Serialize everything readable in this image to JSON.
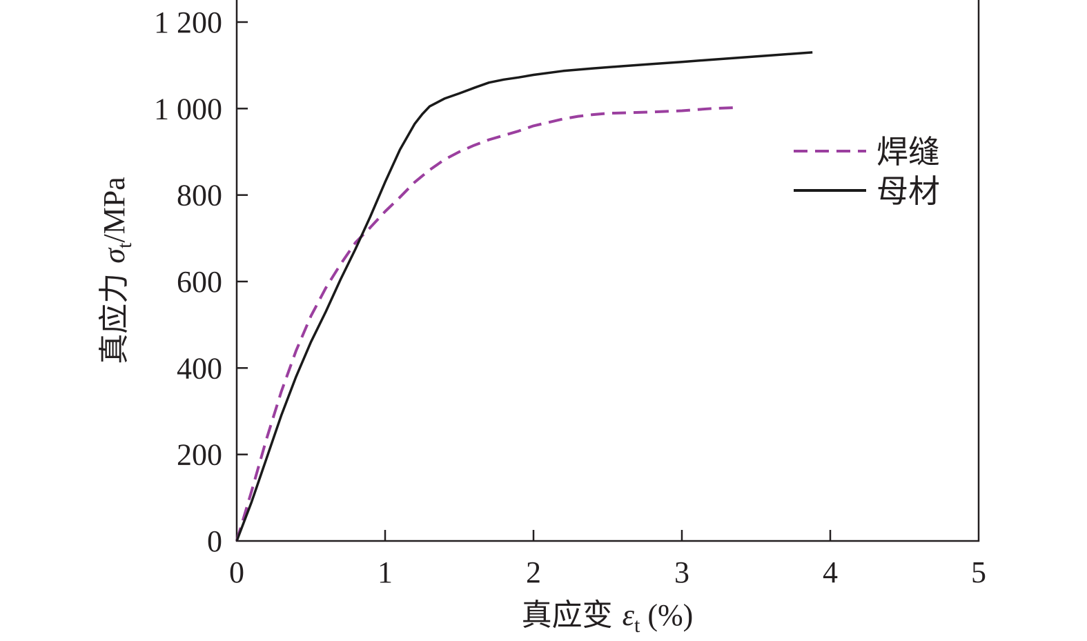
{
  "chart_data": {
    "type": "line",
    "xlabel": {
      "main": "真应变 ",
      "symbol": "ε",
      "subscript": "t",
      "unit": " (%)"
    },
    "ylabel": {
      "main": "真应力 ",
      "symbol": "σ",
      "subscript": "t",
      "unit": "/MPa"
    },
    "xlim": [
      0,
      5
    ],
    "ylim": [
      0,
      1200
    ],
    "x_ticks": [
      0,
      1,
      2,
      3,
      4,
      5
    ],
    "x_tick_labels": [
      "0",
      "1",
      "2",
      "3",
      "4",
      "5"
    ],
    "y_ticks": [
      0,
      200,
      400,
      600,
      800,
      1000,
      1200
    ],
    "y_tick_labels": [
      "0",
      "200",
      "400",
      "600",
      "800",
      "1 000",
      "1 200"
    ],
    "grid": false,
    "legend_position": "right-upper",
    "series": [
      {
        "name": "焊缝",
        "style": "dashed",
        "color": "#9b3f9f",
        "x": [
          0,
          0.1,
          0.2,
          0.3,
          0.4,
          0.5,
          0.6,
          0.7,
          0.8,
          0.9,
          1.0,
          1.1,
          1.2,
          1.3,
          1.4,
          1.5,
          1.6,
          1.7,
          1.8,
          1.9,
          2.0,
          2.1,
          2.2,
          2.3,
          2.4,
          2.5,
          2.6,
          2.8,
          3.0,
          3.2,
          3.35
        ],
        "y": [
          0,
          115,
          235,
          345,
          440,
          520,
          585,
          640,
          690,
          725,
          762,
          795,
          830,
          858,
          882,
          900,
          915,
          928,
          938,
          948,
          960,
          968,
          976,
          982,
          986,
          989,
          990,
          992,
          995,
          1000,
          1002
        ]
      },
      {
        "name": "母材",
        "style": "solid",
        "color": "#1a1a1a",
        "x": [
          0,
          0.1,
          0.2,
          0.3,
          0.4,
          0.5,
          0.6,
          0.7,
          0.8,
          0.9,
          1.0,
          1.1,
          1.2,
          1.25,
          1.3,
          1.4,
          1.5,
          1.6,
          1.7,
          1.8,
          1.9,
          2.0,
          2.2,
          2.4,
          2.6,
          2.8,
          3.0,
          3.2,
          3.4,
          3.6,
          3.8,
          3.88
        ],
        "y": [
          0,
          90,
          190,
          290,
          380,
          460,
          530,
          605,
          675,
          750,
          830,
          905,
          965,
          987,
          1005,
          1023,
          1035,
          1048,
          1060,
          1067,
          1072,
          1078,
          1087,
          1093,
          1098,
          1103,
          1108,
          1113,
          1118,
          1123,
          1128,
          1130
        ]
      }
    ]
  }
}
